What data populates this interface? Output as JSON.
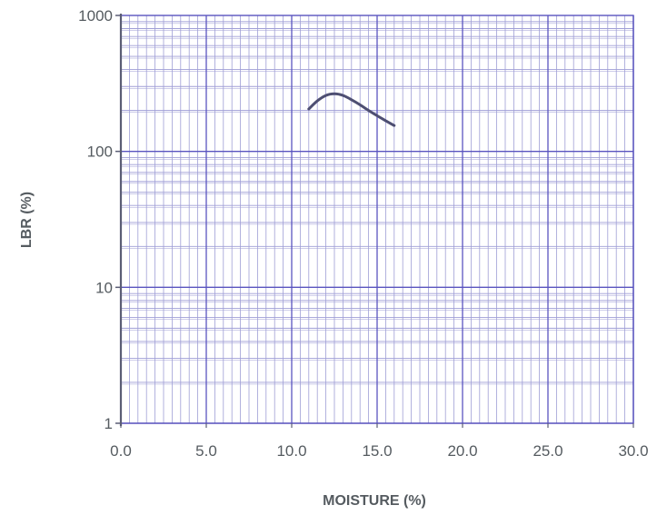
{
  "chart_data": {
    "type": "line",
    "xlabel": "MOISTURE (%)",
    "ylabel": "LBR (%)",
    "xlim": [
      0,
      30
    ],
    "ylim": [
      1,
      1000
    ],
    "y_scale": "log",
    "grid": true,
    "x_ticks": [
      "0.0",
      "5.0",
      "10.0",
      "15.0",
      "20.0",
      "25.0",
      "30.0"
    ],
    "y_ticks": [
      "1",
      "10",
      "100",
      "1000"
    ],
    "series": [
      {
        "x": [
          11.0,
          11.5,
          12.0,
          12.5,
          13.0,
          13.5,
          14.0,
          14.5,
          15.0,
          15.5,
          16.0
        ],
        "values": [
          205,
          235,
          258,
          265,
          258,
          240,
          220,
          200,
          183,
          168,
          155
        ]
      }
    ],
    "colors": {
      "grid_major": "#5a54bf",
      "grid_minor": "#9f9ed6",
      "line": "#4e4f72",
      "text": "#555b60"
    }
  }
}
